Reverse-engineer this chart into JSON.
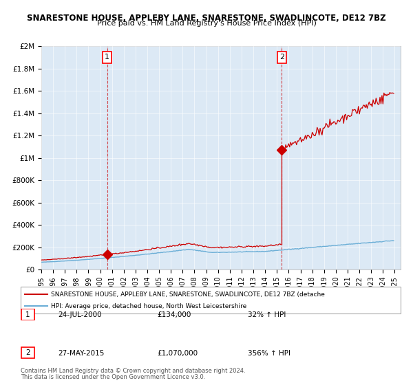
{
  "title1": "SNARESTONE HOUSE, APPLEBY LANE, SNARESTONE, SWADLINCOTE, DE12 7BZ",
  "title2": "Price paid vs. HM Land Registry's House Price Index (HPI)",
  "ylim": [
    0,
    2000000
  ],
  "yticks": [
    0,
    200000,
    400000,
    600000,
    800000,
    1000000,
    1200000,
    1400000,
    1600000,
    1800000,
    2000000
  ],
  "ytick_labels": [
    "£0",
    "£200K",
    "£400K",
    "£600K",
    "£800K",
    "£1M",
    "£1.2M",
    "£1.4M",
    "£1.6M",
    "£1.8M",
    "£2M"
  ],
  "xlim_start": 1995.0,
  "xlim_end": 2025.5,
  "sale1_x": 2000.55,
  "sale1_y": 134000,
  "sale2_x": 2015.4,
  "sale2_y": 1070000,
  "hpi_line_color": "#6baed6",
  "price_line_color": "#cc0000",
  "bg_color": "#dce9f5",
  "annotation1_label": "1",
  "annotation2_label": "2",
  "legend_label_red": "SNARESTONE HOUSE, APPLEBY LANE, SNARESTONE, SWADLINCOTE, DE12 7BZ (detache",
  "legend_label_blue": "HPI: Average price, detached house, North West Leicestershire",
  "table_row1": [
    "1",
    "24-JUL-2000",
    "£134,000",
    "32% ↑ HPI"
  ],
  "table_row2": [
    "2",
    "27-MAY-2015",
    "£1,070,000",
    "356% ↑ HPI"
  ],
  "footer1": "Contains HM Land Registry data © Crown copyright and database right 2024.",
  "footer2": "This data is licensed under the Open Government Licence v3.0."
}
